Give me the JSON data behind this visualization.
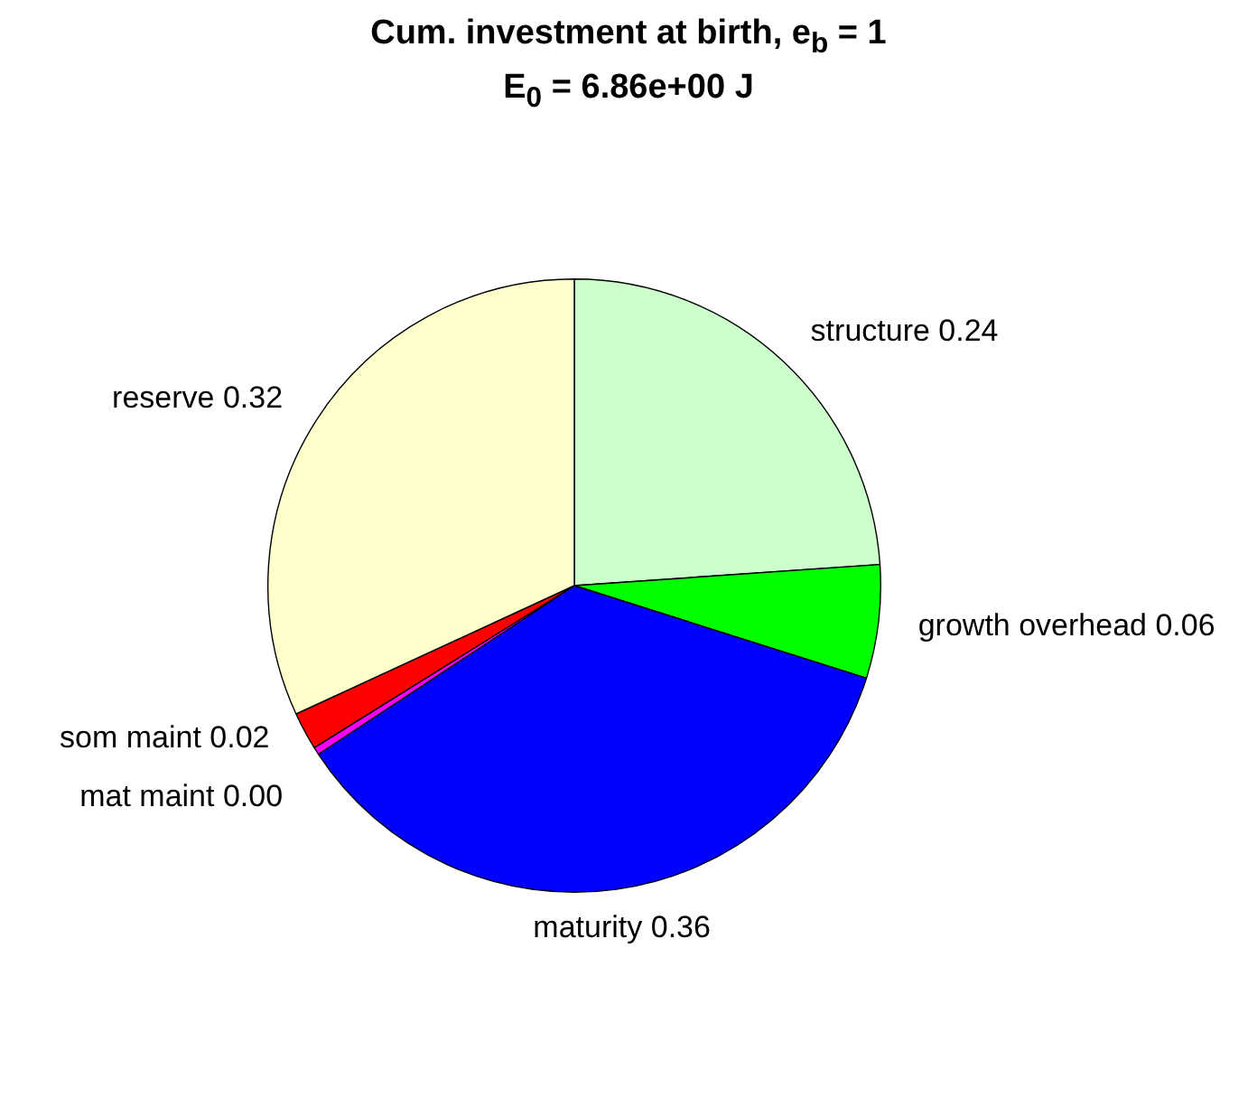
{
  "chart_data": {
    "type": "pie",
    "title": "Cum. investment at birth, e$_{b}$ = 1",
    "subtitle": "E$_{0}$ = 6.86e+00 J",
    "categories": [
      "structure",
      "growth overhead",
      "maturity",
      "mat maint",
      "som maint",
      "reserve"
    ],
    "values": [
      0.24,
      0.06,
      0.36,
      0.004,
      0.02,
      0.32
    ],
    "value_labels": [
      "0.24",
      "0.06",
      "0.36",
      "0.00",
      "0.02",
      "0.32"
    ],
    "colors": [
      "#ccffcc",
      "#00ff00",
      "#0000ff",
      "#ff00ff",
      "#ff0000",
      "#ffffcc"
    ],
    "legend": false
  }
}
